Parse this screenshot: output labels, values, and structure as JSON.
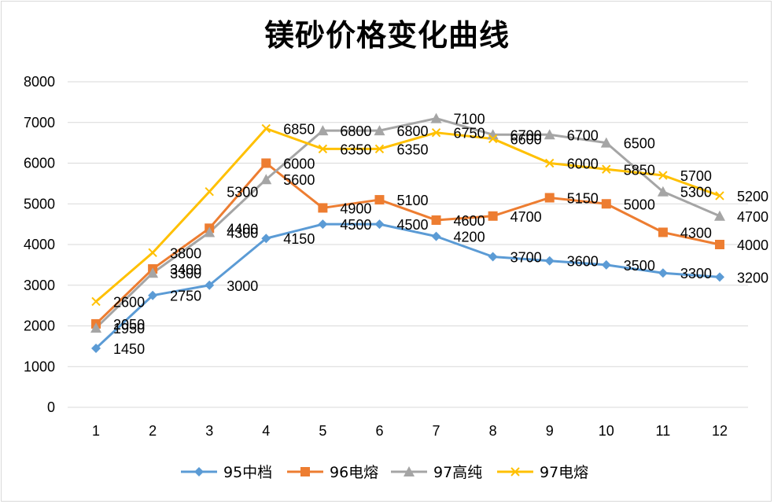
{
  "chart_data": {
    "type": "line",
    "title": "镁砂价格变化曲线",
    "xlabel": "",
    "ylabel": "",
    "categories": [
      "1",
      "2",
      "3",
      "4",
      "5",
      "6",
      "7",
      "8",
      "9",
      "10",
      "11",
      "12"
    ],
    "ylim": [
      0,
      8000
    ],
    "yticks": [
      0,
      1000,
      2000,
      3000,
      4000,
      5000,
      6000,
      7000,
      8000
    ],
    "grid": true,
    "legend_position": "bottom",
    "series": [
      {
        "name": "95中档",
        "color": "#5b9bd5",
        "marker": "diamond",
        "values": [
          1450,
          2750,
          3000,
          4150,
          4500,
          4500,
          4200,
          3700,
          3600,
          3500,
          3300,
          3200
        ]
      },
      {
        "name": "96电熔",
        "color": "#ed7d31",
        "marker": "square",
        "values": [
          2050,
          3400,
          4400,
          6000,
          4900,
          5100,
          4600,
          4700,
          5150,
          5000,
          4300,
          4000
        ]
      },
      {
        "name": "97高纯",
        "color": "#a5a5a5",
        "marker": "triangle",
        "values": [
          1950,
          3300,
          4300,
          5600,
          6800,
          6800,
          7100,
          6700,
          6700,
          6500,
          5300,
          4700
        ]
      },
      {
        "name": "97电熔",
        "color": "#ffc000",
        "marker": "x",
        "values": [
          2600,
          3800,
          5300,
          6850,
          6350,
          6350,
          6750,
          6600,
          6000,
          5850,
          5700,
          5200
        ]
      }
    ]
  }
}
